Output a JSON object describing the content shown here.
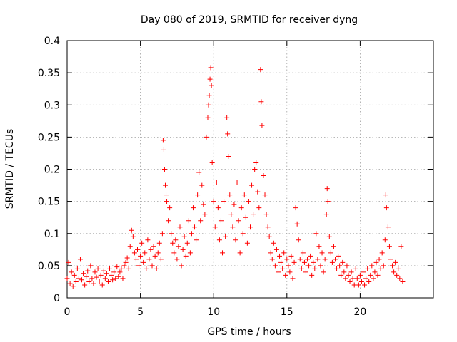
{
  "chart_data": {
    "type": "scatter",
    "title": "Day 080 of 2019, SRMTID for receiver dyng",
    "xlabel": "GPS time / hours",
    "ylabel": "SRMTID / TECUs",
    "xlim": [
      0,
      25
    ],
    "ylim": [
      0,
      0.4
    ],
    "grid": true,
    "marker": "+",
    "color": "#ff0000",
    "x_ticks": [
      0,
      5,
      10,
      15,
      20
    ],
    "x_tick_labels": [
      "0",
      "5",
      "10",
      "15",
      "20"
    ],
    "y_ticks": [
      0,
      0.05,
      0.1,
      0.15,
      0.2,
      0.25,
      0.3,
      0.35,
      0.4
    ],
    "y_tick_labels": [
      "0",
      "0.05",
      "0.1",
      "0.15",
      "0.2",
      "0.25",
      "0.3",
      "0.35",
      "0.4"
    ],
    "series": [
      {
        "name": "dyng",
        "points": [
          [
            0.0,
            0.03
          ],
          [
            0.1,
            0.055
          ],
          [
            0.2,
            0.022
          ],
          [
            0.3,
            0.04
          ],
          [
            0.4,
            0.018
          ],
          [
            0.5,
            0.035
          ],
          [
            0.6,
            0.025
          ],
          [
            0.7,
            0.045
          ],
          [
            0.8,
            0.03
          ],
          [
            0.9,
            0.06
          ],
          [
            1.0,
            0.028
          ],
          [
            1.1,
            0.038
          ],
          [
            1.2,
            0.02
          ],
          [
            1.3,
            0.033
          ],
          [
            1.4,
            0.042
          ],
          [
            1.5,
            0.025
          ],
          [
            1.6,
            0.05
          ],
          [
            1.7,
            0.03
          ],
          [
            1.8,
            0.022
          ],
          [
            1.9,
            0.04
          ],
          [
            2.0,
            0.032
          ],
          [
            2.1,
            0.045
          ],
          [
            2.2,
            0.026
          ],
          [
            2.3,
            0.035
          ],
          [
            2.4,
            0.02
          ],
          [
            2.5,
            0.042
          ],
          [
            2.6,
            0.03
          ],
          [
            2.7,
            0.038
          ],
          [
            2.8,
            0.025
          ],
          [
            2.9,
            0.045
          ],
          [
            3.0,
            0.035
          ],
          [
            3.1,
            0.028
          ],
          [
            3.2,
            0.04
          ],
          [
            3.3,
            0.03
          ],
          [
            3.4,
            0.048
          ],
          [
            3.5,
            0.033
          ],
          [
            3.6,
            0.04
          ],
          [
            3.7,
            0.045
          ],
          [
            3.8,
            0.03
          ],
          [
            3.9,
            0.05
          ],
          [
            4.0,
            0.055
          ],
          [
            4.1,
            0.062
          ],
          [
            4.2,
            0.045
          ],
          [
            4.3,
            0.08
          ],
          [
            4.4,
            0.105
          ],
          [
            4.5,
            0.095
          ],
          [
            4.6,
            0.07
          ],
          [
            4.7,
            0.06
          ],
          [
            4.8,
            0.075
          ],
          [
            4.9,
            0.05
          ],
          [
            5.0,
            0.065
          ],
          [
            5.1,
            0.085
          ],
          [
            5.2,
            0.055
          ],
          [
            5.3,
            0.07
          ],
          [
            5.4,
            0.045
          ],
          [
            5.5,
            0.09
          ],
          [
            5.6,
            0.06
          ],
          [
            5.7,
            0.075
          ],
          [
            5.8,
            0.05
          ],
          [
            5.9,
            0.08
          ],
          [
            6.0,
            0.065
          ],
          [
            6.1,
            0.045
          ],
          [
            6.2,
            0.07
          ],
          [
            6.3,
            0.085
          ],
          [
            6.4,
            0.06
          ],
          [
            6.5,
            0.1
          ],
          [
            6.55,
            0.245
          ],
          [
            6.6,
            0.23
          ],
          [
            6.65,
            0.2
          ],
          [
            6.7,
            0.175
          ],
          [
            6.75,
            0.16
          ],
          [
            6.8,
            0.15
          ],
          [
            6.9,
            0.12
          ],
          [
            7.0,
            0.14
          ],
          [
            7.1,
            0.1
          ],
          [
            7.2,
            0.085
          ],
          [
            7.3,
            0.07
          ],
          [
            7.4,
            0.09
          ],
          [
            7.5,
            0.06
          ],
          [
            7.6,
            0.08
          ],
          [
            7.7,
            0.11
          ],
          [
            7.8,
            0.05
          ],
          [
            7.9,
            0.075
          ],
          [
            8.0,
            0.095
          ],
          [
            8.1,
            0.065
          ],
          [
            8.2,
            0.085
          ],
          [
            8.3,
            0.12
          ],
          [
            8.4,
            0.07
          ],
          [
            8.5,
            0.1
          ],
          [
            8.6,
            0.14
          ],
          [
            8.7,
            0.11
          ],
          [
            8.8,
            0.09
          ],
          [
            8.9,
            0.16
          ],
          [
            9.0,
            0.195
          ],
          [
            9.1,
            0.12
          ],
          [
            9.2,
            0.175
          ],
          [
            9.3,
            0.145
          ],
          [
            9.4,
            0.13
          ],
          [
            9.5,
            0.25
          ],
          [
            9.6,
            0.28
          ],
          [
            9.65,
            0.3
          ],
          [
            9.7,
            0.315
          ],
          [
            9.75,
            0.34
          ],
          [
            9.8,
            0.358
          ],
          [
            9.85,
            0.33
          ],
          [
            9.9,
            0.21
          ],
          [
            10.0,
            0.15
          ],
          [
            10.1,
            0.11
          ],
          [
            10.2,
            0.18
          ],
          [
            10.3,
            0.14
          ],
          [
            10.4,
            0.09
          ],
          [
            10.5,
            0.12
          ],
          [
            10.6,
            0.07
          ],
          [
            10.7,
            0.15
          ],
          [
            10.8,
            0.095
          ],
          [
            10.9,
            0.28
          ],
          [
            10.95,
            0.255
          ],
          [
            11.0,
            0.22
          ],
          [
            11.1,
            0.16
          ],
          [
            11.2,
            0.13
          ],
          [
            11.3,
            0.11
          ],
          [
            11.4,
            0.145
          ],
          [
            11.5,
            0.09
          ],
          [
            11.6,
            0.18
          ],
          [
            11.7,
            0.12
          ],
          [
            11.8,
            0.07
          ],
          [
            11.9,
            0.14
          ],
          [
            12.0,
            0.1
          ],
          [
            12.1,
            0.16
          ],
          [
            12.2,
            0.125
          ],
          [
            12.3,
            0.085
          ],
          [
            12.4,
            0.15
          ],
          [
            12.5,
            0.11
          ],
          [
            12.6,
            0.175
          ],
          [
            12.7,
            0.13
          ],
          [
            12.8,
            0.2
          ],
          [
            12.9,
            0.21
          ],
          [
            13.0,
            0.165
          ],
          [
            13.1,
            0.14
          ],
          [
            13.2,
            0.355
          ],
          [
            13.25,
            0.305
          ],
          [
            13.3,
            0.268
          ],
          [
            13.4,
            0.19
          ],
          [
            13.5,
            0.16
          ],
          [
            13.6,
            0.13
          ],
          [
            13.7,
            0.11
          ],
          [
            13.8,
            0.095
          ],
          [
            13.9,
            0.07
          ],
          [
            14.0,
            0.06
          ],
          [
            14.1,
            0.085
          ],
          [
            14.2,
            0.05
          ],
          [
            14.3,
            0.075
          ],
          [
            14.4,
            0.04
          ],
          [
            14.5,
            0.065
          ],
          [
            14.6,
            0.055
          ],
          [
            14.7,
            0.045
          ],
          [
            14.8,
            0.07
          ],
          [
            14.9,
            0.035
          ],
          [
            15.0,
            0.06
          ],
          [
            15.1,
            0.05
          ],
          [
            15.2,
            0.04
          ],
          [
            15.3,
            0.065
          ],
          [
            15.4,
            0.03
          ],
          [
            15.5,
            0.055
          ],
          [
            15.6,
            0.14
          ],
          [
            15.7,
            0.115
          ],
          [
            15.8,
            0.09
          ],
          [
            15.9,
            0.06
          ],
          [
            16.0,
            0.045
          ],
          [
            16.1,
            0.07
          ],
          [
            16.2,
            0.055
          ],
          [
            16.3,
            0.04
          ],
          [
            16.4,
            0.06
          ],
          [
            16.5,
            0.05
          ],
          [
            16.6,
            0.065
          ],
          [
            16.7,
            0.035
          ],
          [
            16.8,
            0.055
          ],
          [
            16.9,
            0.045
          ],
          [
            17.0,
            0.1
          ],
          [
            17.1,
            0.06
          ],
          [
            17.2,
            0.08
          ],
          [
            17.3,
            0.05
          ],
          [
            17.4,
            0.07
          ],
          [
            17.5,
            0.04
          ],
          [
            17.6,
            0.06
          ],
          [
            17.7,
            0.13
          ],
          [
            17.75,
            0.17
          ],
          [
            17.8,
            0.15
          ],
          [
            17.9,
            0.095
          ],
          [
            18.0,
            0.07
          ],
          [
            18.1,
            0.055
          ],
          [
            18.2,
            0.08
          ],
          [
            18.3,
            0.06
          ],
          [
            18.4,
            0.045
          ],
          [
            18.5,
            0.065
          ],
          [
            18.6,
            0.05
          ],
          [
            18.7,
            0.035
          ],
          [
            18.8,
            0.055
          ],
          [
            18.9,
            0.04
          ],
          [
            19.0,
            0.03
          ],
          [
            19.1,
            0.05
          ],
          [
            19.2,
            0.035
          ],
          [
            19.3,
            0.025
          ],
          [
            19.4,
            0.04
          ],
          [
            19.5,
            0.03
          ],
          [
            19.6,
            0.02
          ],
          [
            19.7,
            0.045
          ],
          [
            19.8,
            0.03
          ],
          [
            19.9,
            0.02
          ],
          [
            20.0,
            0.035
          ],
          [
            20.1,
            0.025
          ],
          [
            20.2,
            0.04
          ],
          [
            20.3,
            0.02
          ],
          [
            20.4,
            0.03
          ],
          [
            20.5,
            0.045
          ],
          [
            20.6,
            0.025
          ],
          [
            20.7,
            0.035
          ],
          [
            20.8,
            0.05
          ],
          [
            20.9,
            0.03
          ],
          [
            21.0,
            0.04
          ],
          [
            21.1,
            0.055
          ],
          [
            21.2,
            0.035
          ],
          [
            21.3,
            0.06
          ],
          [
            21.4,
            0.045
          ],
          [
            21.5,
            0.07
          ],
          [
            21.6,
            0.05
          ],
          [
            21.7,
            0.09
          ],
          [
            21.75,
            0.16
          ],
          [
            21.8,
            0.14
          ],
          [
            21.9,
            0.11
          ],
          [
            22.0,
            0.08
          ],
          [
            22.1,
            0.06
          ],
          [
            22.2,
            0.05
          ],
          [
            22.3,
            0.04
          ],
          [
            22.4,
            0.055
          ],
          [
            22.5,
            0.035
          ],
          [
            22.6,
            0.045
          ],
          [
            22.7,
            0.03
          ],
          [
            22.8,
            0.08
          ],
          [
            22.9,
            0.025
          ]
        ]
      }
    ]
  }
}
